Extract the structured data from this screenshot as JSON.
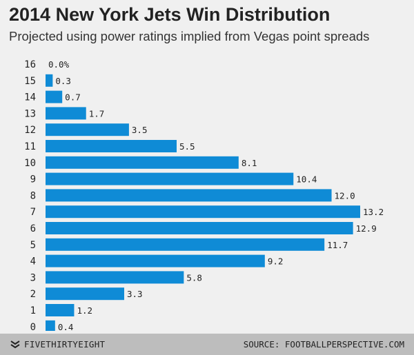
{
  "title": "2014 New York Jets Win Distribution",
  "subtitle": "Projected using power ratings implied from Vegas point spreads",
  "footer": {
    "brand": "FIVETHIRTYEIGHT",
    "brand_icon": "fivethirtyeight-logo-icon",
    "source": "SOURCE: FOOTBALLPERSPECTIVE.COM"
  },
  "colors": {
    "bar": "#0f8bd6",
    "background": "#f0f0f0",
    "footer": "#bdbdbd"
  },
  "chart_data": {
    "type": "bar",
    "orientation": "horizontal",
    "categories": [
      "16",
      "15",
      "14",
      "13",
      "12",
      "11",
      "10",
      "9",
      "8",
      "7",
      "6",
      "5",
      "4",
      "3",
      "2",
      "1",
      "0"
    ],
    "values": [
      0.0,
      0.3,
      0.7,
      1.7,
      3.5,
      5.5,
      8.1,
      10.4,
      12.0,
      13.2,
      12.9,
      11.7,
      9.2,
      5.8,
      3.3,
      1.2,
      0.4
    ],
    "value_labels": [
      "0.0%",
      "0.3",
      "0.7",
      "1.7",
      "3.5",
      "5.5",
      "8.1",
      "10.4",
      "12.0",
      "13.2",
      "12.9",
      "11.7",
      "9.2",
      "5.8",
      "3.3",
      "1.2",
      "0.4"
    ],
    "title": "2014 New York Jets Win Distribution",
    "subtitle": "Projected using power ratings implied from Vegas point spreads",
    "xlabel": "",
    "ylabel": "",
    "xlim": [
      0,
      13.2
    ],
    "grid": false,
    "legend": "none"
  }
}
